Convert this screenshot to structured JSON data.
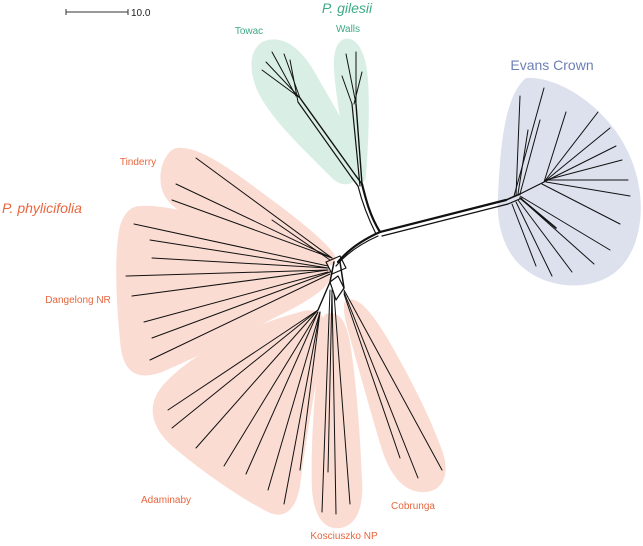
{
  "scale_bar": {
    "label": "10.0"
  },
  "groups": [
    {
      "key": "gilesii",
      "label": "P. gilesii",
      "color": "#3eaa86",
      "fill": "#d9efe6"
    },
    {
      "key": "evans",
      "label": "Evans Crown",
      "color": "#6d7fb6",
      "fill": "#dde1ee"
    },
    {
      "key": "phylicifolia",
      "label": "P. phylicifolia",
      "color": "#e8663e",
      "fill": "#fbdcd2"
    }
  ],
  "populations": [
    {
      "label": "Towac",
      "group": "gilesii"
    },
    {
      "label": "Walls",
      "group": "gilesii"
    },
    {
      "label": "Tinderry",
      "group": "phylicifolia"
    },
    {
      "label": "Dangelong NR",
      "group": "phylicifolia"
    },
    {
      "label": "Adaminaby",
      "group": "phylicifolia"
    },
    {
      "label": "Kosciuszko NP",
      "group": "phylicifolia"
    },
    {
      "label": "Cobrunga",
      "group": "phylicifolia"
    }
  ]
}
